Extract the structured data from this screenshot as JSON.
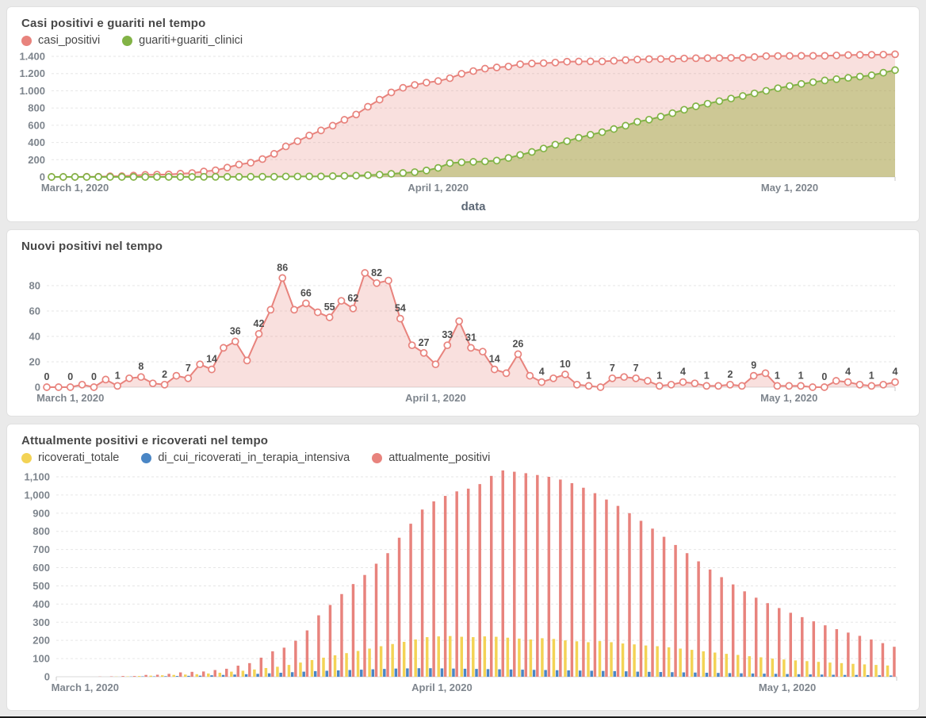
{
  "chart_data": [
    {
      "type": "line",
      "title": "Casi positivi e guariti nel tempo",
      "x_axis_title": "data",
      "grid": true,
      "legend_position": "top-left",
      "y_max": 1400,
      "y_ticks": [
        {
          "value": 0,
          "label": "0"
        },
        {
          "value": 200,
          "label": "200"
        },
        {
          "value": 400,
          "label": "400"
        },
        {
          "value": 600,
          "label": "600"
        },
        {
          "value": 800,
          "label": "800"
        },
        {
          "value": 1000,
          "label": "1.000"
        },
        {
          "value": 1200,
          "label": "1.200"
        },
        {
          "value": 1400,
          "label": "1.400"
        }
      ],
      "x_ticks": [
        {
          "index": 2,
          "label": "March 1, 2020"
        },
        {
          "index": 33,
          "label": "April 1, 2020"
        },
        {
          "index": 63,
          "label": "May 1, 2020"
        }
      ],
      "series": [
        {
          "name": "casi_positivi",
          "color": "#e8837d",
          "fill": "rgba(232,131,125,0.25)",
          "values": [
            0,
            0,
            0,
            2,
            2,
            8,
            9,
            16,
            24,
            27,
            29,
            38,
            45,
            63,
            77,
            108,
            144,
            165,
            207,
            268,
            354,
            415,
            481,
            540,
            595,
            663,
            725,
            815,
            897,
            981,
            1035,
            1068,
            1095,
            1113,
            1146,
            1198,
            1229,
            1257,
            1271,
            1282,
            1308,
            1317,
            1321,
            1328,
            1338,
            1340,
            1341,
            1341,
            1348,
            1356,
            1363,
            1368,
            1369,
            1371,
            1375,
            1378,
            1379,
            1380,
            1382,
            1383,
            1392,
            1403,
            1404,
            1405,
            1406,
            1406,
            1406,
            1411,
            1415,
            1417,
            1418,
            1420,
            1424
          ]
        },
        {
          "name": "guariti+guariti_clinici",
          "color": "#82b346",
          "fill": "rgba(150,170,60,0.45)",
          "values": [
            0,
            0,
            0,
            0,
            0,
            0,
            0,
            0,
            0,
            0,
            0,
            0,
            0,
            1,
            1,
            1,
            1,
            2,
            2,
            2,
            5,
            5,
            6,
            6,
            9,
            12,
            15,
            20,
            26,
            36,
            46,
            56,
            75,
            105,
            160,
            170,
            175,
            180,
            190,
            220,
            255,
            290,
            330,
            375,
            415,
            455,
            490,
            520,
            556,
            595,
            640,
            665,
            700,
            740,
            780,
            820,
            850,
            880,
            910,
            940,
            970,
            1000,
            1030,
            1055,
            1080,
            1100,
            1120,
            1135,
            1150,
            1165,
            1180,
            1210,
            1240
          ]
        }
      ]
    },
    {
      "type": "line",
      "title": "Nuovi positivi nel tempo",
      "x_axis_title": "",
      "grid": true,
      "y_max": 90,
      "y_ticks": [
        {
          "value": 0,
          "label": "0"
        },
        {
          "value": 20,
          "label": "20"
        },
        {
          "value": 40,
          "label": "40"
        },
        {
          "value": 60,
          "label": "60"
        },
        {
          "value": 80,
          "label": "80"
        }
      ],
      "x_ticks": [
        {
          "index": 2,
          "label": "March 1, 2020"
        },
        {
          "index": 33,
          "label": "April 1, 2020"
        },
        {
          "index": 63,
          "label": "May 1, 2020"
        }
      ],
      "series": [
        {
          "name": "nuovi_positivi",
          "color": "#e8837d",
          "fill": "rgba(232,131,125,0.25)",
          "label_every": 2,
          "values": [
            0,
            0,
            0,
            2,
            0,
            6,
            1,
            7,
            8,
            3,
            2,
            9,
            7,
            18,
            14,
            31,
            36,
            21,
            42,
            61,
            86,
            61,
            66,
            59,
            55,
            68,
            62,
            90,
            82,
            84,
            54,
            33,
            27,
            18,
            33,
            52,
            31,
            28,
            14,
            11,
            26,
            9,
            4,
            7,
            10,
            2,
            1,
            0,
            7,
            8,
            7,
            5,
            1,
            2,
            4,
            3,
            1,
            1,
            2,
            1,
            9,
            11,
            1,
            1,
            1,
            0,
            0,
            5,
            4,
            2,
            1,
            2,
            4
          ]
        }
      ]
    },
    {
      "type": "bar",
      "title": "Attualmente positivi e ricoverati nel tempo",
      "x_axis_title": "",
      "grid": true,
      "legend_position": "top-left",
      "y_max": 1100,
      "y_ticks": [
        {
          "value": 0,
          "label": "0"
        },
        {
          "value": 100,
          "label": "100"
        },
        {
          "value": 200,
          "label": "200"
        },
        {
          "value": 300,
          "label": "300"
        },
        {
          "value": 400,
          "label": "400"
        },
        {
          "value": 500,
          "label": "500"
        },
        {
          "value": 600,
          "label": "600"
        },
        {
          "value": 700,
          "label": "700"
        },
        {
          "value": 800,
          "label": "800"
        },
        {
          "value": 900,
          "label": "900"
        },
        {
          "value": 1000,
          "label": "1,000"
        },
        {
          "value": 1100,
          "label": "1,100"
        }
      ],
      "x_ticks": [
        {
          "index": 2,
          "label": "March 1, 2020"
        },
        {
          "index": 33,
          "label": "April 1, 2020"
        },
        {
          "index": 63,
          "label": "May 1, 2020"
        }
      ],
      "series": [
        {
          "name": "ricoverati_totale",
          "color": "#f3d355",
          "values": [
            0,
            0,
            0,
            0,
            0,
            1,
            2,
            4,
            6,
            8,
            10,
            12,
            14,
            18,
            22,
            28,
            33,
            40,
            48,
            55,
            65,
            78,
            92,
            105,
            118,
            130,
            142,
            155,
            168,
            180,
            192,
            205,
            218,
            222,
            224,
            220,
            218,
            222,
            220,
            215,
            210,
            205,
            212,
            208,
            200,
            195,
            190,
            196,
            190,
            183,
            178,
            172,
            168,
            162,
            155,
            148,
            140,
            133,
            126,
            120,
            113,
            107,
            100,
            95,
            90,
            86,
            82,
            78,
            75,
            71,
            68,
            65,
            62
          ]
        },
        {
          "name": "di_cui_ricoverati_in_terapia_intensiva",
          "color": "#4a86c5",
          "values": [
            0,
            0,
            0,
            0,
            0,
            0,
            1,
            2,
            2,
            3,
            4,
            5,
            6,
            8,
            10,
            12,
            14,
            16,
            19,
            22,
            25,
            28,
            31,
            33,
            35,
            37,
            39,
            41,
            43,
            45,
            46,
            47,
            47,
            46,
            45,
            44,
            43,
            42,
            41,
            40,
            39,
            38,
            37,
            36,
            35,
            34,
            33,
            32,
            31,
            30,
            28,
            27,
            26,
            25,
            24,
            23,
            22,
            21,
            20,
            19,
            18,
            17,
            16,
            15,
            14,
            13,
            12,
            11,
            10,
            10,
            9,
            8,
            7
          ]
        },
        {
          "name": "attualmente_positivi",
          "color": "#e8837d",
          "values": [
            0,
            0,
            0,
            1,
            2,
            4,
            4,
            10,
            11,
            16,
            24,
            27,
            29,
            37,
            44,
            61,
            75,
            105,
            140,
            160,
            198,
            255,
            338,
            395,
            455,
            510,
            560,
            622,
            680,
            765,
            842,
            920,
            965,
            995,
            1020,
            1035,
            1060,
            1105,
            1135,
            1128,
            1120,
            1110,
            1100,
            1085,
            1065,
            1040,
            1010,
            975,
            940,
            900,
            858,
            815,
            770,
            725,
            680,
            635,
            590,
            548,
            508,
            470,
            435,
            405,
            378,
            352,
            328,
            305,
            283,
            262,
            243,
            225,
            205,
            185,
            165
          ]
        }
      ]
    }
  ]
}
